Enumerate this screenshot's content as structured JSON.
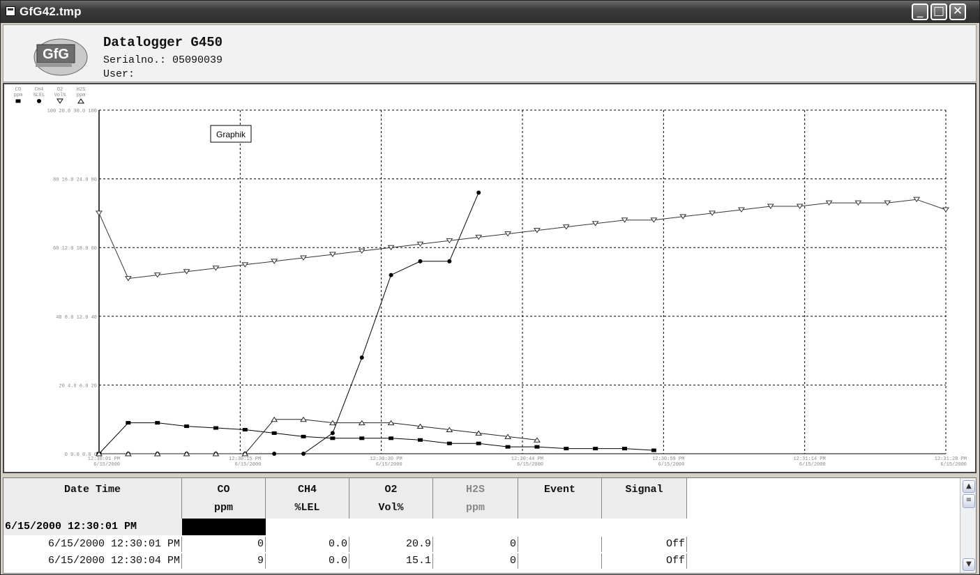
{
  "window": {
    "title": "GfG42.tmp",
    "minimize_label": "_",
    "maximize_label": "□",
    "close_label": "✕"
  },
  "header": {
    "logo_text": "GfG",
    "title": "Datalogger G450",
    "serial": "Serialno.: 05090039",
    "user": "User:"
  },
  "tooltip": "Graphik",
  "chart_data": {
    "type": "line",
    "axes_headers": [
      {
        "name": "CO",
        "unit": "ppm"
      },
      {
        "name": "CH4",
        "unit": "%LEL"
      },
      {
        "name": "O2",
        "unit": "Vol%"
      },
      {
        "name": "H2S",
        "unit": "ppm"
      }
    ],
    "y_tick_labels": [
      "100 20.0 30.0 100",
      "80 16.0 24.0 80",
      "60 12.0 18.0 60",
      "40 8.0 12.0 40",
      "20 4.0 6.0 20",
      "0 0.0 0.0 0"
    ],
    "x_tick_labels": [
      {
        "time": "12:30:01 PM",
        "date": "6/15/2000"
      },
      {
        "time": "12:30:15 PM",
        "date": "6/15/2000"
      },
      {
        "time": "12:30:30 PM",
        "date": "6/15/2000"
      },
      {
        "time": "12:30:44 PM",
        "date": "6/15/2000"
      },
      {
        "time": "12:30:59 PM",
        "date": "6/15/2000"
      },
      {
        "time": "12:31:14 PM",
        "date": "6/15/2000"
      },
      {
        "time": "12:31:28 PM",
        "date": "6/15/2000"
      }
    ],
    "ylim": [
      0,
      100
    ],
    "grid": true,
    "series": [
      {
        "marker": "square",
        "color": "#000000",
        "x": [
          0,
          3,
          6,
          9,
          12,
          15,
          18,
          21,
          24,
          27,
          30,
          33,
          36,
          39,
          42,
          45,
          48,
          51,
          54,
          57
        ],
        "values": [
          0,
          9,
          9,
          8,
          7.5,
          7,
          6,
          5,
          4.5,
          4.5,
          4.5,
          4,
          3,
          3,
          2,
          2,
          1.5,
          1.5,
          1.5,
          1
        ]
      },
      {
        "marker": "circle",
        "color": "#000000",
        "x": [
          0,
          3,
          6,
          9,
          12,
          15,
          18,
          21,
          24,
          27,
          30,
          33,
          36,
          39,
          42,
          45
        ],
        "values": [
          0,
          0,
          0,
          0,
          0,
          0,
          0,
          0,
          6,
          28,
          52,
          56,
          56,
          76,
          null,
          null
        ]
      },
      {
        "marker": "triangle-down",
        "color": "#333333",
        "x": [
          0,
          3,
          6,
          9,
          12,
          15,
          18,
          21,
          24,
          27,
          30,
          33,
          36,
          39,
          42,
          45,
          48,
          51,
          54,
          57,
          60,
          63,
          66,
          69,
          72,
          75,
          78,
          81,
          84,
          87
        ],
        "values": [
          70,
          51,
          52,
          53,
          54,
          55,
          56,
          57,
          58,
          59,
          60,
          61,
          62,
          63,
          64,
          65,
          66,
          67,
          68,
          68,
          69,
          70,
          71,
          72,
          72,
          73,
          73,
          73,
          74,
          71
        ]
      },
      {
        "marker": "triangle-up",
        "color": "#222222",
        "x": [
          0,
          3,
          6,
          9,
          12,
          15,
          18,
          21,
          24,
          27,
          30,
          33,
          36,
          39,
          42,
          45
        ],
        "values": [
          0,
          0,
          0,
          0,
          0,
          0,
          10,
          10,
          9,
          9,
          9,
          8,
          7,
          6,
          5,
          4
        ]
      }
    ]
  },
  "table": {
    "columns": [
      {
        "l1": "Date Time",
        "l2": ""
      },
      {
        "l1": "CO",
        "l2": "ppm"
      },
      {
        "l1": "CH4",
        "l2": "%LEL"
      },
      {
        "l1": "O2",
        "l2": "Vol%"
      },
      {
        "l1": "H2S",
        "l2": "ppm"
      },
      {
        "l1": "Event",
        "l2": ""
      },
      {
        "l1": "Signal",
        "l2": ""
      }
    ],
    "group_label": "6/15/2000 12:30:01 PM",
    "rows": [
      {
        "time": "6/15/2000 12:30:01 PM",
        "co": "0",
        "ch4": "0.0",
        "o2": "20.9",
        "h2s": "0",
        "event": "",
        "signal": "Off"
      },
      {
        "time": "6/15/2000 12:30:04 PM",
        "co": "9",
        "ch4": "0.0",
        "o2": "15.1",
        "h2s": "0",
        "event": "",
        "signal": "Off"
      }
    ]
  }
}
